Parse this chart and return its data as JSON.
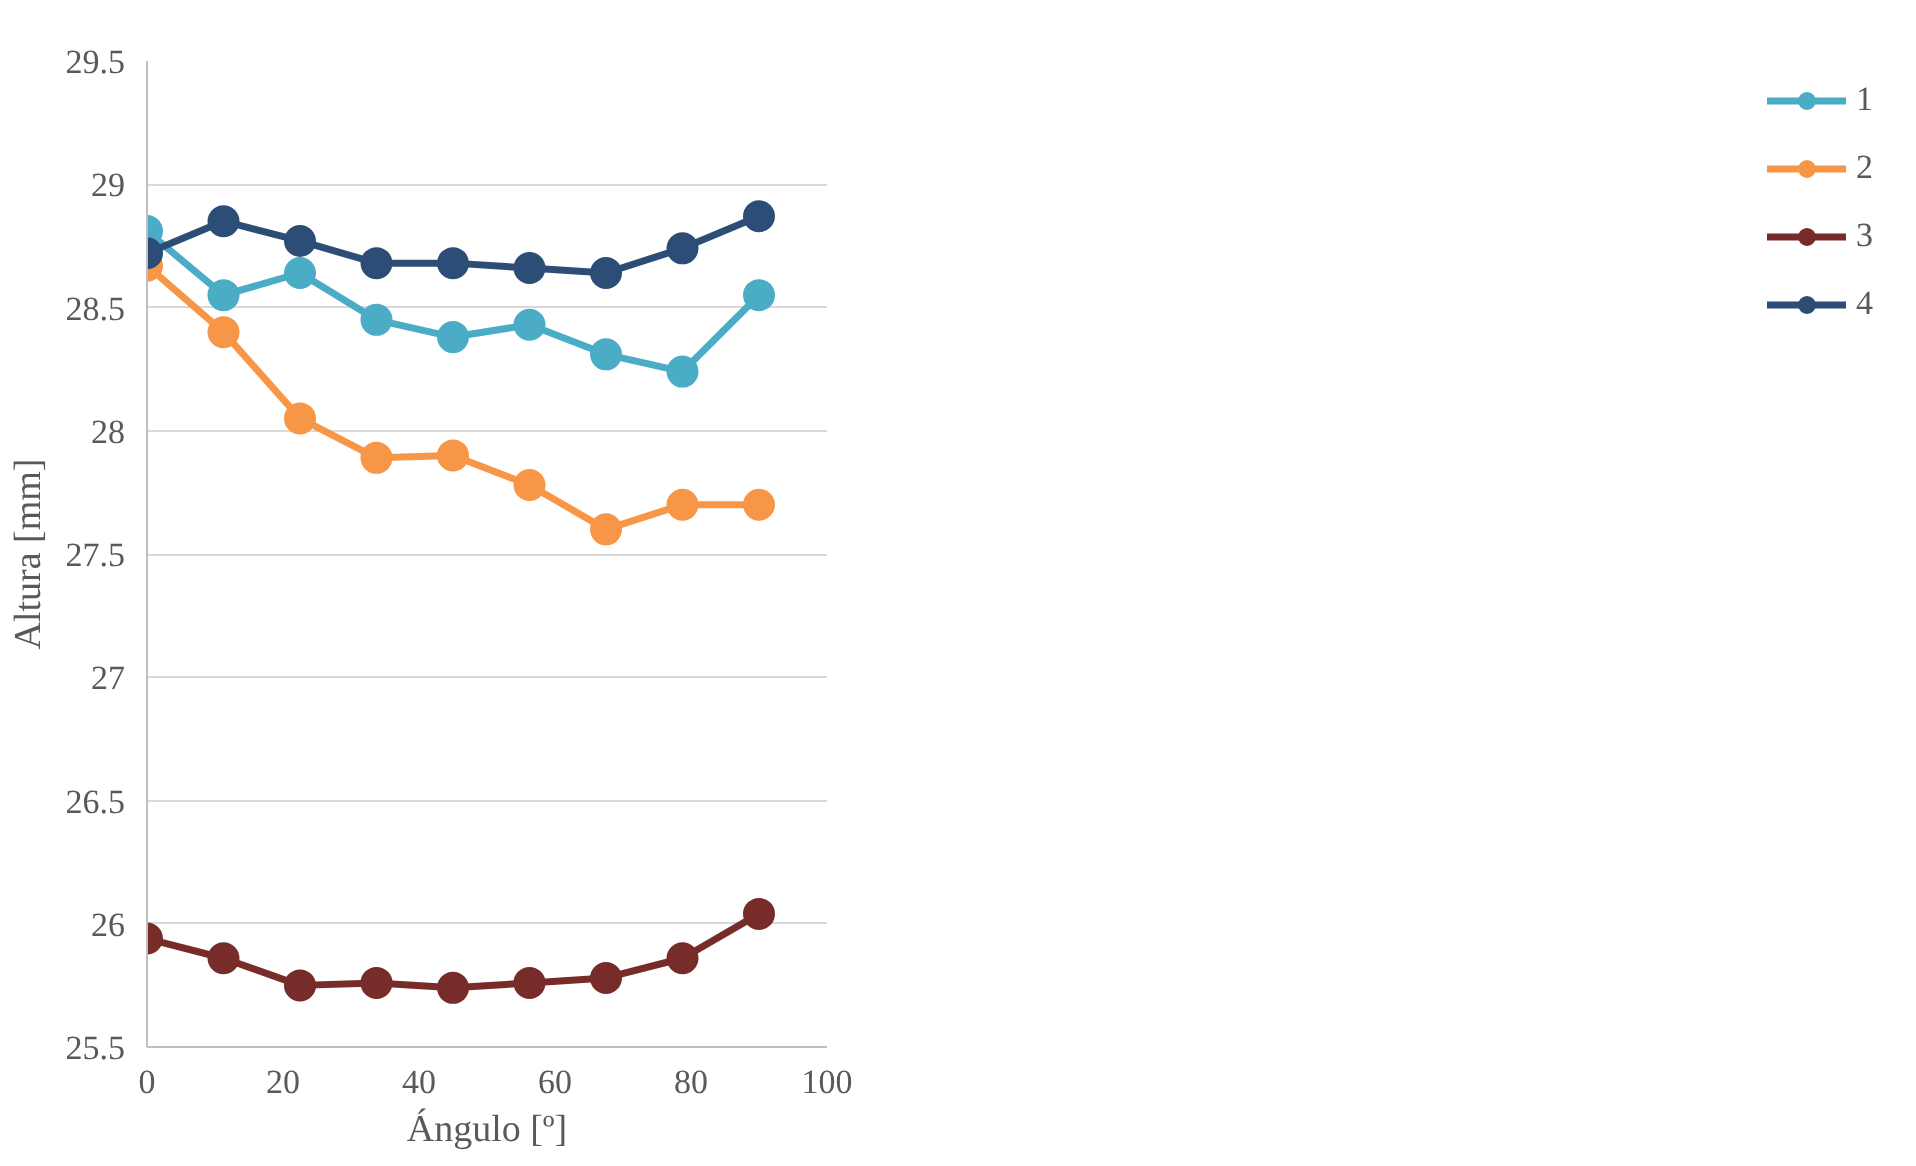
{
  "chart_data": {
    "type": "line",
    "xlabel": "Ángulo [º]",
    "ylabel": "Altura [mm]",
    "x": [
      0,
      11.25,
      22.5,
      33.75,
      45,
      56.25,
      67.5,
      78.75,
      90
    ],
    "series": [
      {
        "name": "1",
        "color": "#4bacc6",
        "values": [
          28.81,
          28.55,
          28.64,
          28.45,
          28.38,
          28.43,
          28.31,
          28.24,
          28.55
        ]
      },
      {
        "name": "2",
        "color": "#f79646",
        "values": [
          28.67,
          28.4,
          28.05,
          27.89,
          27.9,
          27.78,
          27.6,
          27.7,
          27.7
        ]
      },
      {
        "name": "3",
        "color": "#772c2a",
        "values": [
          25.94,
          25.86,
          25.75,
          25.76,
          25.74,
          25.76,
          25.78,
          25.86,
          26.04
        ]
      },
      {
        "name": "4",
        "color": "#2c4d75",
        "values": [
          28.72,
          28.85,
          28.77,
          28.68,
          28.68,
          28.66,
          28.64,
          28.74,
          28.87
        ]
      }
    ],
    "xlim": [
      0,
      100
    ],
    "xticks": [
      0,
      20,
      40,
      60,
      80,
      100
    ],
    "ylim": [
      25.5,
      29.5
    ],
    "yticks": [
      {
        "value": 25.5,
        "label": "25.5"
      },
      {
        "value": 26,
        "label": "26"
      },
      {
        "value": 26.5,
        "label": "26.5"
      },
      {
        "value": 27,
        "label": "27"
      },
      {
        "value": 27.5,
        "label": "27.5"
      },
      {
        "value": 28,
        "label": "28"
      },
      {
        "value": 28.5,
        "label": "28.5"
      },
      {
        "value": 29,
        "label": "29"
      },
      {
        "value": 29.5,
        "label": "29.5"
      }
    ],
    "grid": "y",
    "legend": "right",
    "marker": "circle",
    "line_style": "solid"
  }
}
